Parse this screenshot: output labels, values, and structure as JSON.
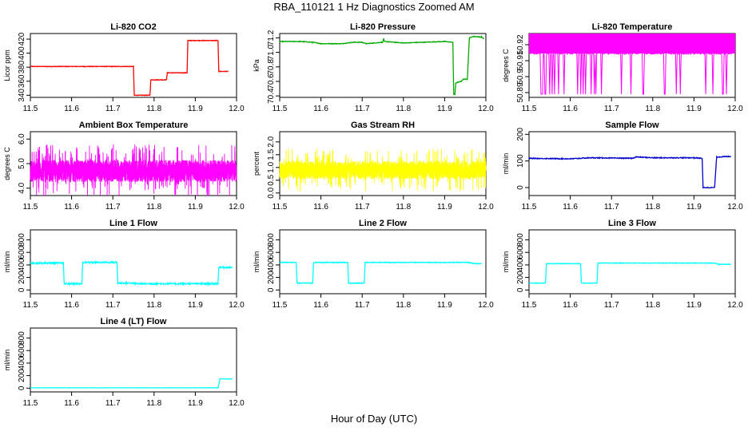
{
  "title": "RBA_110121  1 Hz Diagnostics Zoomed AM",
  "xlabel": "Hour of Day (UTC)",
  "colors": {
    "red": "#ff0000",
    "green": "#00aa00",
    "magenta": "#ff00ff",
    "yellow": "#ffff00",
    "blue": "#0000cc",
    "cyan": "#00ffff"
  },
  "chart_data": [
    {
      "type": "line",
      "title": "Li-820 CO2",
      "ylabel": "Licor ppm",
      "color": "#ff0000",
      "xlim": [
        11.5,
        12.0
      ],
      "xticks": [
        "11.5",
        "11.6",
        "11.7",
        "11.8",
        "11.9",
        "12.0"
      ],
      "yticks": [
        "340",
        "360",
        "380",
        "400",
        "420"
      ],
      "ylim": [
        337,
        428
      ],
      "noise": 0.4,
      "points": [
        [
          11.5,
          381
        ],
        [
          11.75,
          381
        ],
        [
          11.752,
          340
        ],
        [
          11.79,
          340
        ],
        [
          11.792,
          362
        ],
        [
          11.83,
          362
        ],
        [
          11.832,
          372
        ],
        [
          11.88,
          372
        ],
        [
          11.882,
          418
        ],
        [
          11.955,
          418
        ],
        [
          11.957,
          374
        ],
        [
          11.98,
          374
        ]
      ]
    },
    {
      "type": "line",
      "title": "Li-820 Pressure",
      "ylabel": "kPa",
      "color": "#00aa00",
      "xlim": [
        11.5,
        12.0
      ],
      "xticks": [
        "11.5",
        "11.6",
        "11.7",
        "11.8",
        "11.9",
        "12.0"
      ],
      "yticks": [
        "70.4",
        "70.6",
        "70.8",
        "71.0",
        "71.2"
      ],
      "ylim": [
        70.38,
        71.26
      ],
      "noise": 0.004,
      "points": [
        [
          11.5,
          71.15
        ],
        [
          11.55,
          71.15
        ],
        [
          11.58,
          71.14
        ],
        [
          11.6,
          71.12
        ],
        [
          11.65,
          71.12
        ],
        [
          11.68,
          71.14
        ],
        [
          11.7,
          71.14
        ],
        [
          11.71,
          71.12
        ],
        [
          11.75,
          71.14
        ],
        [
          11.752,
          71.19
        ],
        [
          11.754,
          71.15
        ],
        [
          11.8,
          71.13
        ],
        [
          11.85,
          71.14
        ],
        [
          11.9,
          71.15
        ],
        [
          11.92,
          71.14
        ],
        [
          11.922,
          70.42
        ],
        [
          11.925,
          70.42
        ],
        [
          11.927,
          70.58
        ],
        [
          11.94,
          70.6
        ],
        [
          11.945,
          70.63
        ],
        [
          11.955,
          70.63
        ],
        [
          11.96,
          71.2
        ],
        [
          11.97,
          71.22
        ],
        [
          11.99,
          71.21
        ],
        [
          11.995,
          71.19
        ]
      ]
    },
    {
      "type": "line",
      "title": "Li-820 Temperature",
      "ylabel": "degrees C",
      "color": "#ff00ff",
      "xlim": [
        11.5,
        12.0
      ],
      "xticks": [
        "11.5",
        "11.6",
        "11.7",
        "11.8",
        "11.9",
        "12.0"
      ],
      "yticks": [
        "50.89",
        "50.9",
        "50.91",
        "50.92"
      ],
      "ylim": [
        50.887,
        50.927
      ],
      "points": [
        [
          11.5,
          50.927
        ],
        [
          11.53,
          50.927
        ],
        [
          11.54,
          50.889
        ],
        [
          11.55,
          50.927
        ],
        [
          11.6,
          50.927
        ],
        [
          11.61,
          50.889
        ],
        [
          11.62,
          50.927
        ],
        [
          11.7,
          50.927
        ],
        [
          11.71,
          50.889
        ],
        [
          11.72,
          50.927
        ],
        [
          11.8,
          50.927
        ],
        [
          11.81,
          50.889
        ],
        [
          11.82,
          50.927
        ],
        [
          11.9,
          50.927
        ],
        [
          11.91,
          50.889
        ],
        [
          11.92,
          50.927
        ],
        [
          12.0,
          50.927
        ]
      ]
    },
    {
      "type": "line",
      "title": "Ambient Box Temperature",
      "ylabel": "degrees C",
      "color": "#ff00ff",
      "xlim": [
        11.5,
        12.0
      ],
      "xticks": [
        "11.5",
        "11.6",
        "11.7",
        "11.8",
        "11.9",
        "12.0"
      ],
      "yticks": [
        "4.0",
        "5.0",
        "6.0"
      ],
      "ylim": [
        3.7,
        6.3
      ],
      "noise": 0.45,
      "points": [
        [
          11.5,
          4.7
        ],
        [
          12.0,
          4.7
        ]
      ]
    },
    {
      "type": "line",
      "title": "Gas Stream RH",
      "ylabel": "percent",
      "color": "#ffff00",
      "xlim": [
        11.5,
        12.0
      ],
      "xticks": [
        "11.5",
        "11.6",
        "11.7",
        "11.8",
        "11.9",
        "12.0"
      ],
      "yticks": [
        "0.0",
        "0.5",
        "1.0",
        "1.5",
        "2.0"
      ],
      "ylim": [
        -0.1,
        2.4
      ],
      "noise": 0.35,
      "points": [
        [
          11.5,
          0.9
        ],
        [
          12.0,
          0.9
        ]
      ]
    },
    {
      "type": "line",
      "title": "Sample Flow",
      "ylabel": "ml/min",
      "color": "#0000cc",
      "xlim": [
        11.5,
        12.0
      ],
      "xticks": [
        "11.5",
        "11.6",
        "11.7",
        "11.8",
        "11.9",
        "12.0"
      ],
      "yticks": [
        "0",
        "100",
        "200"
      ],
      "ylim": [
        -30,
        210
      ],
      "noise": 1.5,
      "points": [
        [
          11.5,
          110
        ],
        [
          11.6,
          108
        ],
        [
          11.65,
          112
        ],
        [
          11.75,
          110
        ],
        [
          11.76,
          115
        ],
        [
          11.8,
          112
        ],
        [
          11.9,
          112
        ],
        [
          11.92,
          110
        ],
        [
          11.922,
          0
        ],
        [
          11.95,
          0
        ],
        [
          11.955,
          115
        ],
        [
          11.99,
          117
        ]
      ]
    },
    {
      "type": "line",
      "title": "Line 1 Flow",
      "ylabel": "ml/min",
      "color": "#00ffff",
      "xlim": [
        11.5,
        12.0
      ],
      "xticks": [
        "11.5",
        "11.6",
        "11.7",
        "11.8",
        "11.9",
        "12.0"
      ],
      "yticks": [
        "0",
        "200",
        "400",
        "600",
        "800"
      ],
      "ylim": [
        -60,
        960
      ],
      "noise": 12,
      "points": [
        [
          11.5,
          430
        ],
        [
          11.58,
          430
        ],
        [
          11.582,
          100
        ],
        [
          11.625,
          100
        ],
        [
          11.627,
          440
        ],
        [
          11.71,
          440
        ],
        [
          11.712,
          110
        ],
        [
          11.75,
          110
        ],
        [
          11.752,
          100
        ],
        [
          11.955,
          100
        ],
        [
          11.957,
          360
        ],
        [
          11.99,
          360
        ]
      ]
    },
    {
      "type": "line",
      "title": "Line 2 Flow",
      "ylabel": "ml/min",
      "color": "#00ffff",
      "xlim": [
        11.5,
        12.0
      ],
      "xticks": [
        "11.5",
        "11.6",
        "11.7",
        "11.8",
        "11.9",
        "12.0"
      ],
      "yticks": [
        "0",
        "200",
        "400",
        "600",
        "800"
      ],
      "ylim": [
        -60,
        960
      ],
      "noise": 6,
      "points": [
        [
          11.5,
          440
        ],
        [
          11.54,
          440
        ],
        [
          11.542,
          110
        ],
        [
          11.58,
          110
        ],
        [
          11.582,
          440
        ],
        [
          11.665,
          440
        ],
        [
          11.667,
          110
        ],
        [
          11.705,
          110
        ],
        [
          11.707,
          440
        ],
        [
          11.96,
          440
        ],
        [
          11.97,
          420
        ],
        [
          11.99,
          420
        ]
      ]
    },
    {
      "type": "line",
      "title": "Line 3 Flow",
      "ylabel": "ml/min",
      "color": "#00ffff",
      "xlim": [
        11.5,
        12.0
      ],
      "xticks": [
        "11.5",
        "11.6",
        "11.7",
        "11.8",
        "11.9",
        "12.0"
      ],
      "yticks": [
        "0",
        "200",
        "400",
        "600",
        "800"
      ],
      "ylim": [
        -60,
        960
      ],
      "noise": 4,
      "points": [
        [
          11.5,
          110
        ],
        [
          11.54,
          110
        ],
        [
          11.542,
          420
        ],
        [
          11.625,
          420
        ],
        [
          11.627,
          110
        ],
        [
          11.665,
          110
        ],
        [
          11.667,
          430
        ],
        [
          11.95,
          430
        ],
        [
          11.96,
          410
        ],
        [
          11.99,
          410
        ]
      ]
    },
    {
      "type": "line",
      "title": "Line 4 (LT) Flow",
      "ylabel": "ml/min",
      "color": "#00ffff",
      "xlim": [
        11.5,
        12.0
      ],
      "xticks": [
        "11.5",
        "11.6",
        "11.7",
        "11.8",
        "11.9",
        "12.0"
      ],
      "yticks": [
        "0",
        "200",
        "400",
        "600",
        "800"
      ],
      "ylim": [
        -60,
        960
      ],
      "noise": 1.5,
      "points": [
        [
          11.5,
          5
        ],
        [
          11.955,
          5
        ],
        [
          11.96,
          150
        ],
        [
          11.99,
          145
        ]
      ]
    }
  ]
}
